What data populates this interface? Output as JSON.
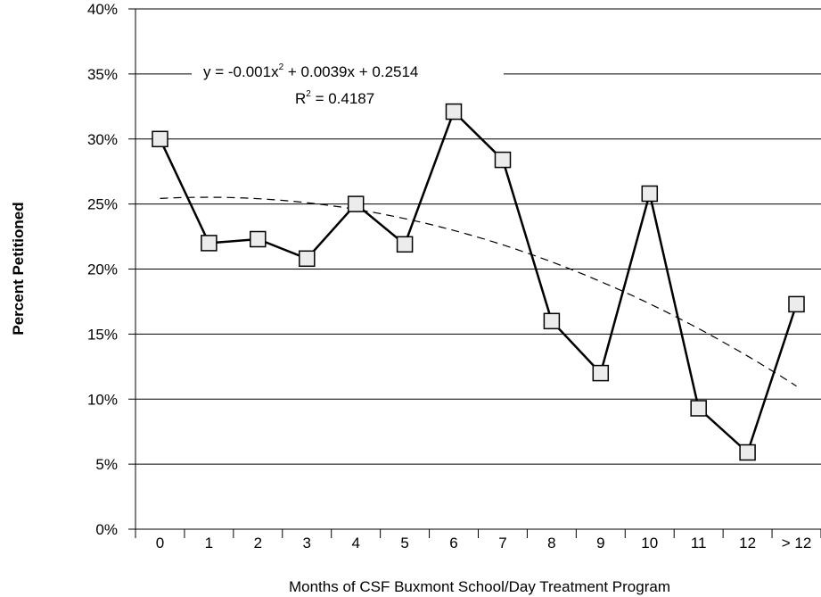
{
  "chart_data": {
    "type": "line",
    "xlabel": "Months of CSF Buxmont School/Day Treatment Program",
    "ylabel": "Percent Petitioned",
    "categories": [
      "0",
      "1",
      "2",
      "3",
      "4",
      "5",
      "6",
      "7",
      "8",
      "9",
      "10",
      "11",
      "12",
      "> 12"
    ],
    "y_ticks": [
      "0%",
      "5%",
      "10%",
      "15%",
      "20%",
      "25%",
      "30%",
      "35%",
      "40%"
    ],
    "ylim": [
      0,
      0.4
    ],
    "grid": "horizontal",
    "series": [
      {
        "values": [
          0.3,
          0.22,
          0.223,
          0.208,
          0.25,
          0.219,
          0.321,
          0.284,
          0.16,
          0.12,
          0.258,
          0.093,
          0.059,
          0.173
        ],
        "marker": "square",
        "color": "#000000",
        "marker_fill": "#ececec"
      }
    ],
    "trendline": {
      "kind": "polynomial-2",
      "coefficients": {
        "a": -0.001,
        "b": 0.0039,
        "c": 0.2514
      },
      "style": "dashed",
      "equation_parts": [
        "y = -0.001x",
        "2",
        " + 0.0039x + 0.2514"
      ],
      "r2_parts": [
        "R",
        "2",
        " = 0.4187"
      ]
    }
  }
}
